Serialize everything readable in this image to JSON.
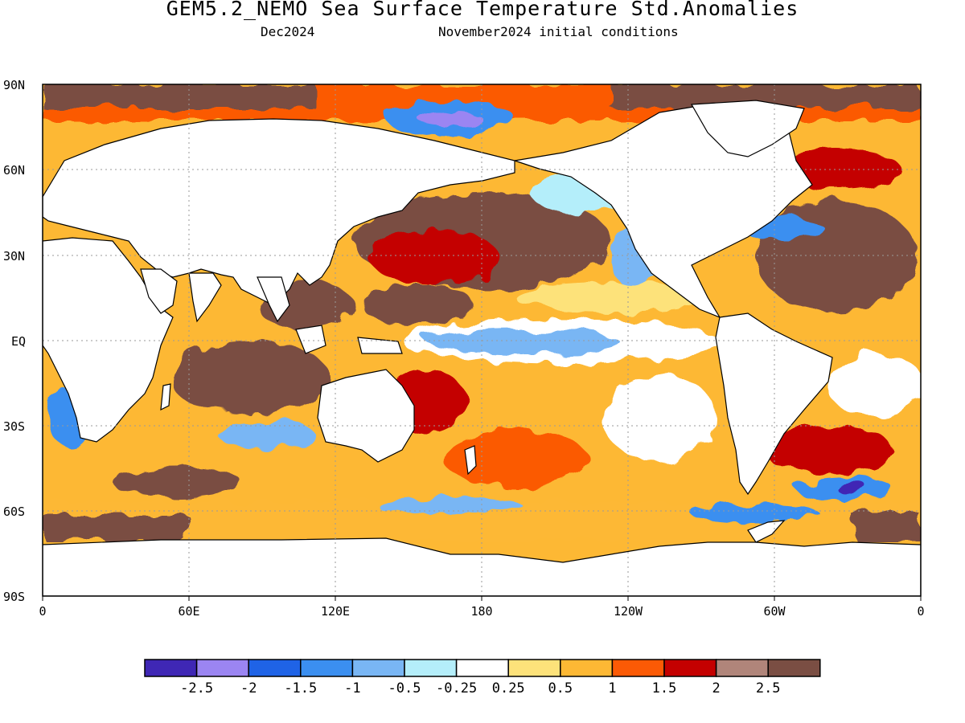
{
  "header": {
    "title": "GEM5.2_NEMO Sea Surface Temperature Std.Anomalies",
    "valid_month": "Dec2024",
    "init": "November2024 initial conditions"
  },
  "axes": {
    "lat_labels": [
      "90N",
      "60N",
      "30N",
      "EQ",
      "30S",
      "60S",
      "90S"
    ],
    "lon_labels": [
      "0",
      "60E",
      "120E",
      "180",
      "120W",
      "60W",
      "0"
    ]
  },
  "colorbar": {
    "colors": [
      "#3f27b5",
      "#9b85f2",
      "#1f63e6",
      "#3b8ff0",
      "#79b6f4",
      "#b4eefa",
      "#ffffff",
      "#fde27a",
      "#fdb834",
      "#fb5a05",
      "#c40000",
      "#b0857a",
      "#7a4e43"
    ],
    "labels": [
      "-2.5",
      "-2",
      "-1.5",
      "-1",
      "-0.5",
      "-0.25",
      "0.25",
      "0.5",
      "1",
      "1.5",
      "2",
      "2.5"
    ]
  },
  "palette": {
    "land": "#ffffff",
    "coast": "#000000",
    "grid": "#9a9a9a"
  }
}
